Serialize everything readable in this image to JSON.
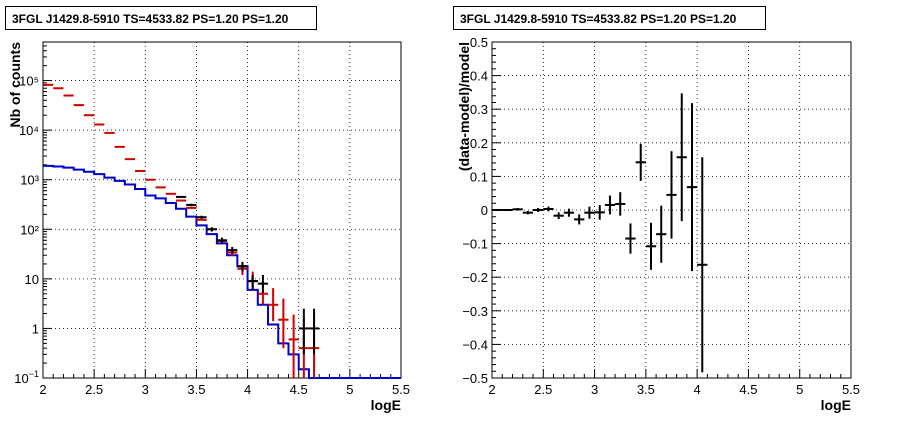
{
  "chart_data": [
    {
      "type": "line",
      "title": "3FGL J1429.8-5910 TS=4533.82 PS=1.20 PS=1.20",
      "xlabel": "logE",
      "ylabel": "Nb of counts",
      "xlim": [
        2,
        5.5
      ],
      "ylim": [
        0.1,
        600000
      ],
      "yscale": "log",
      "grid": true,
      "x_ticks": [
        2,
        2.5,
        3,
        3.5,
        4,
        4.5,
        5,
        5.5
      ],
      "x_tick_labels": [
        "2",
        "2.5",
        "3",
        "3.5",
        "4",
        "4.5",
        "5",
        "5.5"
      ],
      "y_ticks": [
        0.1,
        1,
        10,
        100,
        1000,
        10000,
        100000
      ],
      "y_tick_labels": [
        "10-1",
        "1",
        "10",
        "10²",
        "10³",
        "10⁴",
        "10⁵"
      ],
      "bin_edges": [
        2.0,
        2.1,
        2.2,
        2.3,
        2.4,
        2.5,
        2.6,
        2.7,
        2.8,
        2.9,
        3.0,
        3.1,
        3.2,
        3.3,
        3.4,
        3.5,
        3.6,
        3.7,
        3.8,
        3.9,
        4.0,
        4.1,
        4.2,
        4.3,
        4.4,
        4.5,
        4.6,
        4.7,
        5.5
      ],
      "series": [
        {
          "color": "#d10000",
          "style": "markers",
          "x": [
            2.05,
            2.15,
            2.25,
            2.35,
            2.45,
            2.55,
            2.65,
            2.75,
            2.85,
            2.95,
            3.05,
            3.15,
            3.25,
            3.35,
            3.45,
            3.55,
            3.65,
            3.75,
            3.85,
            3.95,
            4.05,
            4.15,
            4.25,
            4.35,
            4.45,
            4.55,
            4.65
          ],
          "y": [
            82000,
            70000,
            50000,
            32000,
            20000,
            13000,
            8800,
            4600,
            2600,
            1500,
            1000,
            700,
            520,
            380,
            270,
            155,
            100,
            58,
            34,
            16,
            9,
            5,
            3,
            1.5,
            0.6,
            0.4,
            0.4
          ],
          "y_err_low": [
            0,
            0,
            0,
            0,
            0,
            0,
            0,
            0,
            0,
            0,
            0,
            0,
            0,
            0,
            0,
            0,
            0,
            5,
            5,
            4,
            3,
            2,
            1.6,
            1.1,
            0.5,
            0.3,
            0.3
          ],
          "y_err_high": [
            0,
            0,
            0,
            0,
            0,
            0,
            0,
            0,
            0,
            0,
            0,
            0,
            0,
            0,
            0,
            0,
            0,
            8,
            6,
            6,
            5,
            4,
            3.5,
            2.5,
            1.3,
            1.2,
            1.2
          ]
        },
        {
          "color": "#000000",
          "style": "markers",
          "x": [
            3.35,
            3.45,
            3.55,
            3.65,
            3.75,
            3.85,
            3.95,
            4.05,
            4.15,
            4.55,
            4.65
          ],
          "y": [
            450,
            310,
            175,
            100,
            60,
            38,
            18,
            9,
            8,
            1,
            1
          ],
          "y_err_low": [
            20,
            18,
            13,
            10,
            8,
            6,
            4,
            3,
            2.8,
            0.7,
            0.7
          ],
          "y_err_high": [
            20,
            18,
            13,
            10,
            8,
            6,
            4,
            3,
            4,
            1.5,
            1.5
          ]
        },
        {
          "color": "#0000cc",
          "style": "step",
          "y": [
            1900,
            1850,
            1750,
            1600,
            1450,
            1300,
            1100,
            950,
            800,
            650,
            480,
            420,
            340,
            260,
            180,
            120,
            80,
            52,
            30,
            18,
            6,
            3,
            1.2,
            0.5,
            0.3,
            0.15,
            0.1,
            0.1
          ]
        }
      ]
    },
    {
      "type": "scatter",
      "title": "3FGL J1429.8-5910 TS=4533.82 PS=1.20 PS=1.20",
      "xlabel": "logE",
      "ylabel": "(data-model)/model",
      "xlim": [
        2,
        5.5
      ],
      "ylim": [
        -0.5,
        0.5
      ],
      "grid": true,
      "x_ticks": [
        2,
        2.5,
        3,
        3.5,
        4,
        4.5,
        5,
        5.5
      ],
      "x_tick_labels": [
        "2",
        "2.5",
        "3",
        "3.5",
        "4",
        "4.5",
        "5",
        "5.5"
      ],
      "y_ticks": [
        -0.5,
        -0.4,
        -0.3,
        -0.2,
        -0.1,
        0,
        0.1,
        0.2,
        0.3,
        0.4,
        0.5
      ],
      "y_tick_labels": [
        "−0.5",
        "−0.4",
        "−0.3",
        "−0.2",
        "−0.1",
        "0",
        "0.1",
        "0.2",
        "0.3",
        "0.4",
        "0.5"
      ],
      "series": [
        {
          "color": "#000000",
          "x": [
            2.05,
            2.15,
            2.25,
            2.35,
            2.45,
            2.55,
            2.65,
            2.75,
            2.85,
            2.95,
            3.05,
            3.15,
            3.25,
            3.35,
            3.45,
            3.55,
            3.65,
            3.75,
            3.85,
            3.95,
            4.05
          ],
          "y": [
            0.0,
            0.0,
            0.002,
            -0.008,
            0.0,
            0.003,
            -0.017,
            -0.008,
            -0.028,
            -0.008,
            -0.007,
            0.015,
            0.018,
            -0.085,
            0.142,
            -0.108,
            -0.072,
            0.045,
            0.157,
            0.068,
            -0.163
          ],
          "x_err": [
            0.05,
            0.05,
            0.05,
            0.05,
            0.05,
            0.05,
            0.05,
            0.05,
            0.05,
            0.05,
            0.05,
            0.05,
            0.05,
            0.05,
            0.05,
            0.05,
            0.05,
            0.05,
            0.05,
            0.05,
            0.05
          ],
          "y_err": [
            0.0,
            0.0,
            0.004,
            0.005,
            0.006,
            0.007,
            0.01,
            0.012,
            0.015,
            0.018,
            0.022,
            0.028,
            0.035,
            0.045,
            0.055,
            0.07,
            0.085,
            0.13,
            0.19,
            0.25,
            0.32
          ]
        }
      ]
    }
  ]
}
